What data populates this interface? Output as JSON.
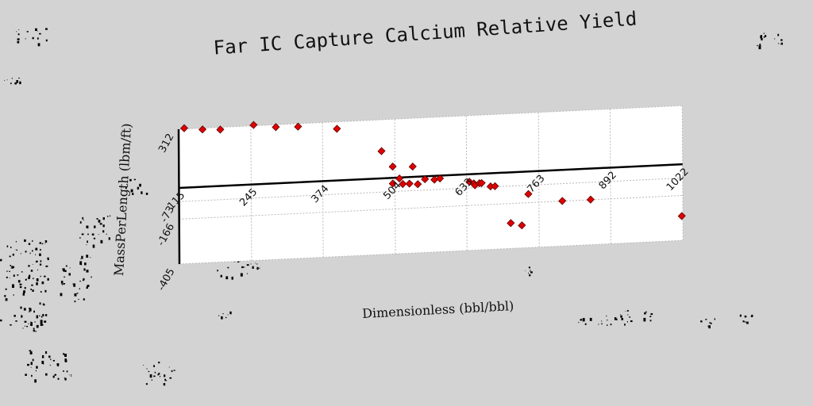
{
  "chart_data": {
    "type": "scatter",
    "title": "Far IC Capture Calcium Relative Yield",
    "xlabel": "Dimensionless (bbl/bbl)",
    "ylabel": "MassPerLength (lbm/ft)",
    "xlim": [
      115,
      1022
    ],
    "ylim": [
      -405,
      312
    ],
    "x_ticks": [
      "115",
      "245",
      "374",
      "504",
      "633",
      "763",
      "892",
      "1022"
    ],
    "y_ticks": [
      "312",
      "-73",
      "-166",
      "-405"
    ],
    "grid": true,
    "legend": "none",
    "marker_color": "#e00000",
    "series": [
      {
        "x": [
          125,
          158,
          190,
          250,
          290,
          330,
          400,
          480,
          500,
          500,
          512,
          518,
          530,
          536,
          545,
          558,
          575,
          585,
          638,
          646,
          648,
          656,
          660,
          676,
          684,
          712,
          732,
          744,
          805,
          856,
          1020
        ],
        "y": [
          316,
          305,
          300,
          316,
          299,
          296,
          275,
          145,
          60,
          -30,
          -5,
          -35,
          -35,
          55,
          -40,
          -15,
          -20,
          -15,
          -40,
          -50,
          -60,
          -50,
          -50,
          -70,
          -70,
          -270,
          -285,
          -120,
          -165,
          -165,
          -275
        ]
      }
    ]
  },
  "decor": {
    "speckle_color": "#000000"
  }
}
